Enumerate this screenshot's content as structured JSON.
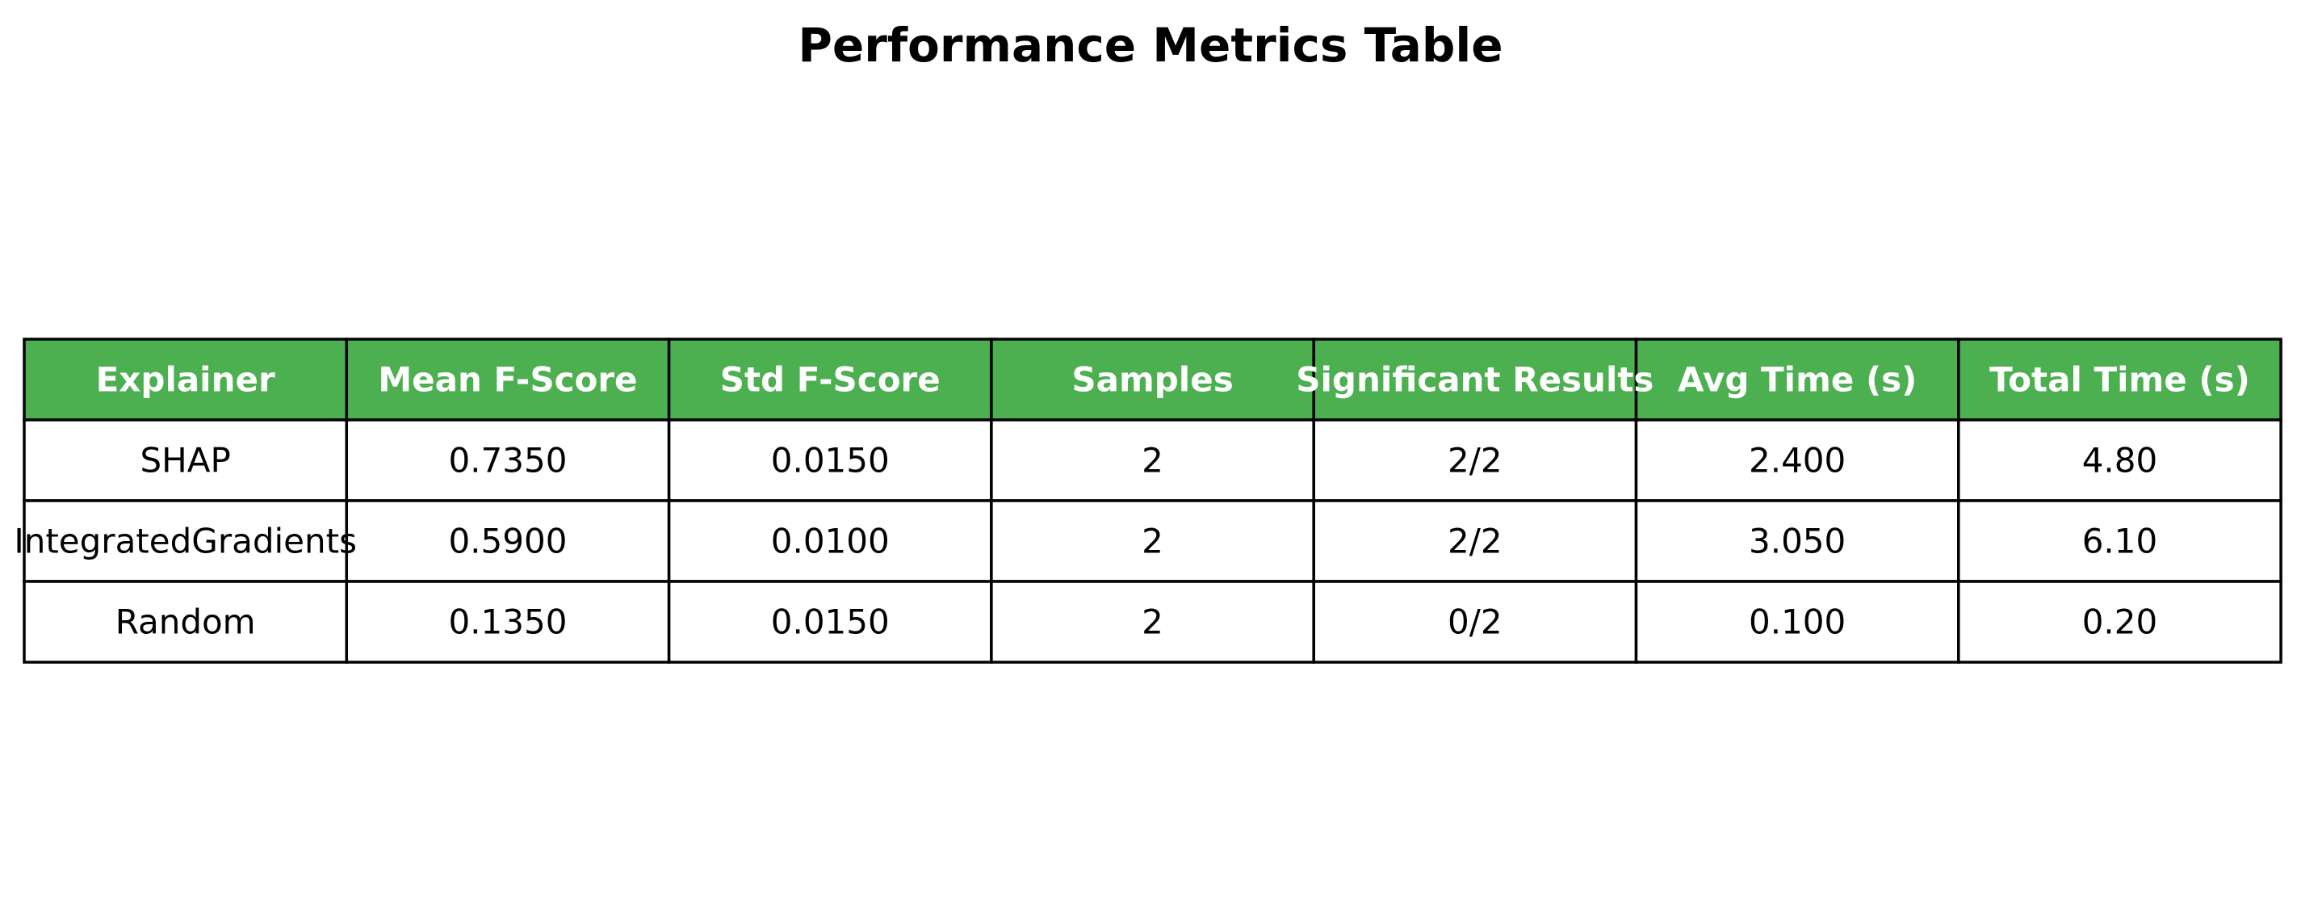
{
  "chart_data": {
    "type": "table",
    "title": "Performance Metrics Table",
    "header_color": "#4caf50",
    "header_text_color": "#ffffff",
    "border_color": "#000000",
    "columns": [
      "Explainer",
      "Mean F-Score",
      "Std F-Score",
      "Samples",
      "Significant Results",
      "Avg Time (s)",
      "Total Time (s)"
    ],
    "rows": [
      [
        "SHAP",
        "0.7350",
        "0.0150",
        "2",
        "2/2",
        "2.400",
        "4.80"
      ],
      [
        "IntegratedGradients",
        "0.5900",
        "0.0100",
        "2",
        "2/2",
        "3.050",
        "6.10"
      ],
      [
        "Random",
        "0.1350",
        "0.0150",
        "2",
        "0/2",
        "0.100",
        "0.20"
      ]
    ]
  }
}
